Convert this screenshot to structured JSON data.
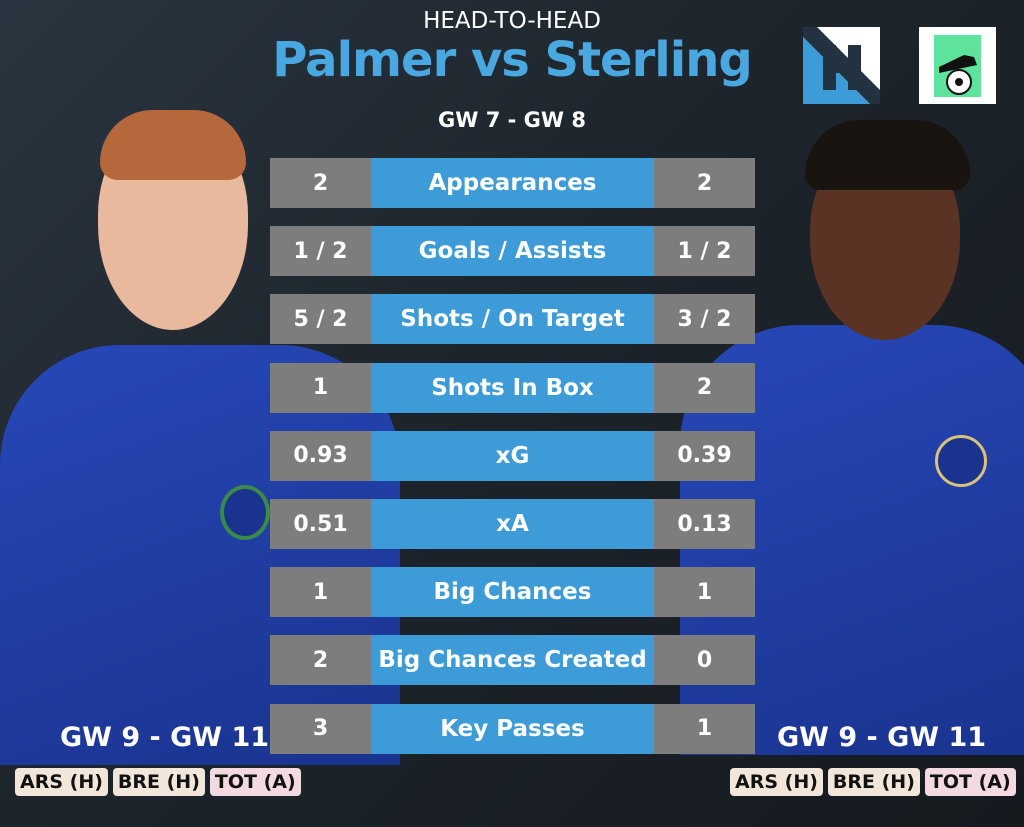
{
  "header": {
    "kicker": "HEAD-TO-HEAD",
    "title": "Palmer vs Sterling",
    "range": "GW 7 - GW 8"
  },
  "colors": {
    "accent": "#3d9bd8",
    "stat_box": "#7d7d7d",
    "home_badge": "#f1e6d9",
    "away_badge": "#f3d9e1"
  },
  "logos": {
    "left": "H logo",
    "right": "football boot logo"
  },
  "stats": [
    {
      "label": "Appearances",
      "left": "2",
      "right": "2"
    },
    {
      "label": "Goals / Assists",
      "left": "1 / 2",
      "right": "1 / 2"
    },
    {
      "label": "Shots / On Target",
      "left": "5 / 2",
      "right": "3 / 2"
    },
    {
      "label": "Shots In Box",
      "left": "1",
      "right": "2"
    },
    {
      "label": "xG",
      "left": "0.93",
      "right": "0.39"
    },
    {
      "label": "xA",
      "left": "0.51",
      "right": "0.13"
    },
    {
      "label": "Big Chances",
      "left": "1",
      "right": "1"
    },
    {
      "label": "Big Chances Created",
      "left": "2",
      "right": "0"
    },
    {
      "label": "Key Passes",
      "left": "3",
      "right": "1"
    }
  ],
  "left_player": {
    "upcoming": "GW 9 - GW 11",
    "fixtures": [
      {
        "text": "ARS (H)",
        "venue": "H"
      },
      {
        "text": "BRE (H)",
        "venue": "H"
      },
      {
        "text": "TOT (A)",
        "venue": "A"
      }
    ]
  },
  "right_player": {
    "upcoming": "GW 9 - GW 11",
    "fixtures": [
      {
        "text": "ARS (H)",
        "venue": "H"
      },
      {
        "text": "BRE (H)",
        "venue": "H"
      },
      {
        "text": "TOT (A)",
        "venue": "A"
      }
    ]
  }
}
